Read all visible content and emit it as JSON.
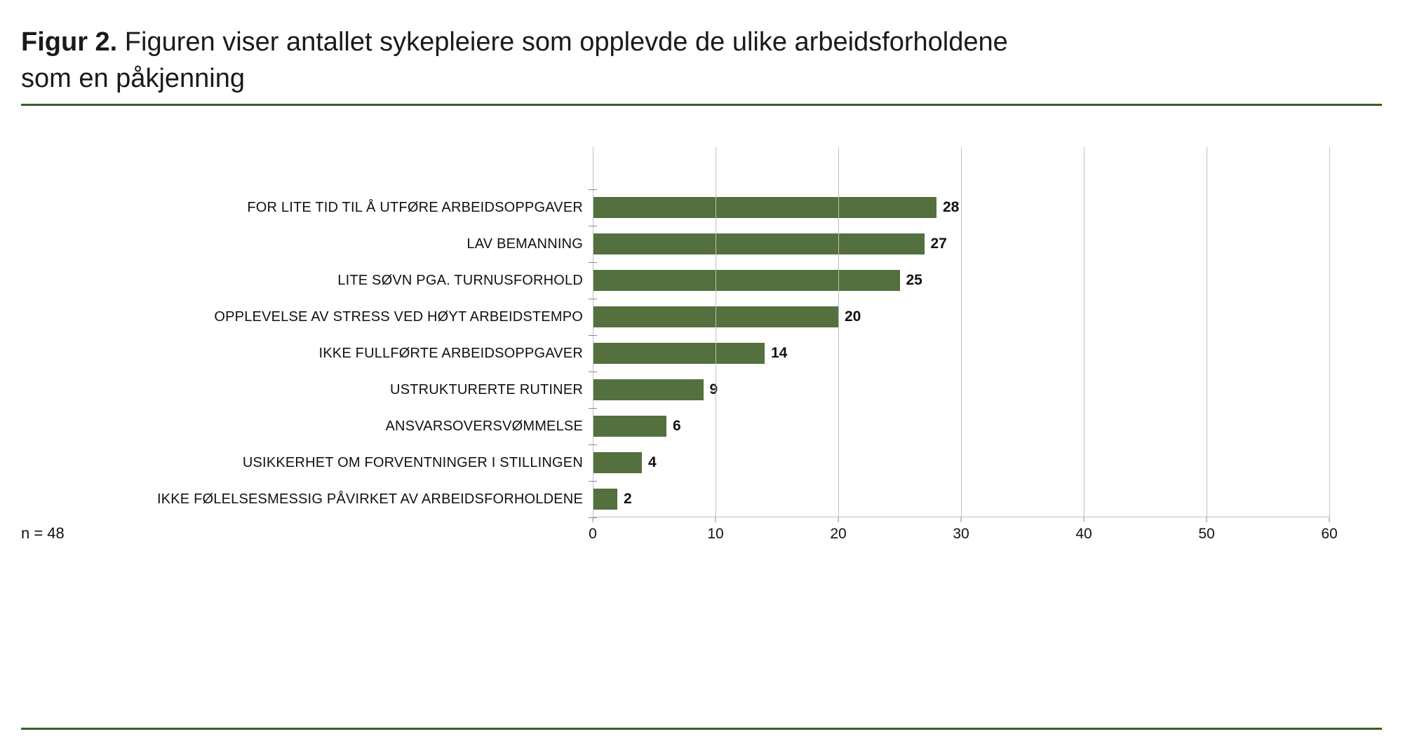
{
  "header": {
    "prefix": "Figur 2.",
    "rest": "Figuren viser antallet sykepleiere som opplevde de ulike arbeidsforholdene som en påkjenning"
  },
  "footer": {
    "n_label": "n = 48"
  },
  "colors": {
    "bar": "#53703e",
    "rule": "#3e5e27",
    "grid": "#bfbfbf"
  },
  "chart_data": {
    "type": "bar",
    "orientation": "horizontal",
    "title": "Figur 2. Figuren viser antallet sykepleiere som opplevde de ulike arbeidsforholdene som en påkjenning",
    "categories": [
      "FOR LITE TID TIL Å UTFØRE ARBEIDSOPPGAVER",
      "LAV BEMANNING",
      "LITE SØVN  PGA. TURNUSFORHOLD",
      "OPPLEVELSE AV STRESS VED HØYT ARBEIDSTEMPO",
      "IKKE FULLFØRTE ARBEIDSOPPGAVER",
      "USTRUKTURERTE RUTINER",
      "ANSVARSOVERSVØMMELSE",
      "USIKKERHET OM FORVENTNINGER I STILLINGEN",
      "IKKE FØLELSESMESSIG PÅVIRKET AV ARBEIDSFORHOLDENE"
    ],
    "values": [
      28,
      27,
      25,
      20,
      14,
      9,
      6,
      4,
      2
    ],
    "xlabel": "",
    "ylabel": "",
    "xlim": [
      0,
      60
    ],
    "x_ticks": [
      0,
      10,
      20,
      30,
      40,
      50,
      60
    ],
    "grid": true,
    "legend": "none",
    "sample_size": "n = 48"
  }
}
